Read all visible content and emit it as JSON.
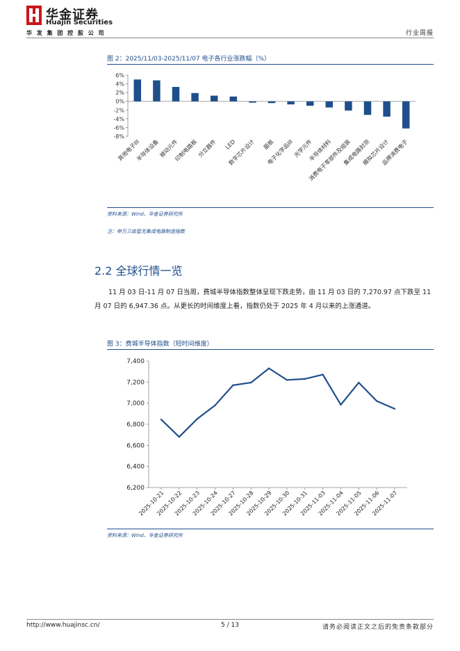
{
  "header": {
    "logo_cn": "华金证券",
    "logo_en": "Huajin Securities",
    "logo_sub": "华 发 集 团 控 股 公 司",
    "report_type": "行业周报",
    "brand_color": "#c8161d"
  },
  "figure2": {
    "title": "图 2：2025/11/03-2025/11/07 电子各行业涨跌幅（%）",
    "source": "资料来源：Wind、华金证券研究所",
    "note": "注：申万三级暂无集成电路制造指数",
    "chart_data": {
      "type": "bar",
      "title": "2025/11/03-2025/11/07 电子各行业涨跌幅（%）",
      "categories": [
        "其他电子III",
        "半导体设备",
        "被动元件",
        "印制电路板",
        "分立器件",
        "LED",
        "数字芯片设计",
        "面板",
        "电子化学品III",
        "光学元件",
        "半导体材料",
        "消费电子零部件及组装",
        "集成电路封测",
        "模拟芯片设计",
        "品牌消费电子"
      ],
      "values": [
        5.0,
        4.8,
        3.3,
        1.9,
        1.3,
        1.1,
        -0.3,
        -0.4,
        -0.7,
        -1.0,
        -1.4,
        -2.1,
        -3.1,
        -3.5,
        -6.2
      ],
      "tick_labels": [
        "6%",
        "4%",
        "2%",
        "0%",
        "-2%",
        "-4%",
        "-6%",
        "-8%"
      ],
      "ylim": [
        -8,
        6
      ],
      "bar_color": "#1f4e8c"
    }
  },
  "section": {
    "title": "2.2 全球行情一览",
    "paragraph": "11 月 03 日-11 月 07 日当周，费城半导体指数整体呈现下跌走势，由 11 月 03 日的 7,270.97 点下跌至 11 月 07 日的 6,947.36 点。从更长的时间维度上看，指数仍处于 2025 年 4 月以来的上涨通道。"
  },
  "figure3": {
    "title": "图 3：费城半导体指数（短时间维度）",
    "source": "资料来源：Wind、华金证券研究所",
    "chart_data": {
      "type": "line",
      "title": "费城半导体指数（短时间维度）",
      "x": [
        "2025-10-21",
        "2025-10-22",
        "2025-10-23",
        "2025-10-24",
        "2025-10-27",
        "2025-10-28",
        "2025-10-29",
        "2025-10-30",
        "2025-10-31",
        "2025-11-03",
        "2025-11-04",
        "2025-11-05",
        "2025-11-06",
        "2025-11-07"
      ],
      "values": [
        6845,
        6680,
        6850,
        6980,
        7170,
        7195,
        7330,
        7220,
        7230,
        7271,
        6985,
        7195,
        7020,
        6947
      ],
      "tick_labels": [
        "7,400",
        "7,200",
        "7,000",
        "6,800",
        "6,600",
        "6,400",
        "6,200"
      ],
      "ylim": [
        6200,
        7400
      ],
      "line_color": "#1f4e8c"
    }
  },
  "footer": {
    "url": "http://www.huajinsc.cn/",
    "page": "5 / 13",
    "disclaimer": "请务必阅读正文之后的免责条款部分"
  }
}
